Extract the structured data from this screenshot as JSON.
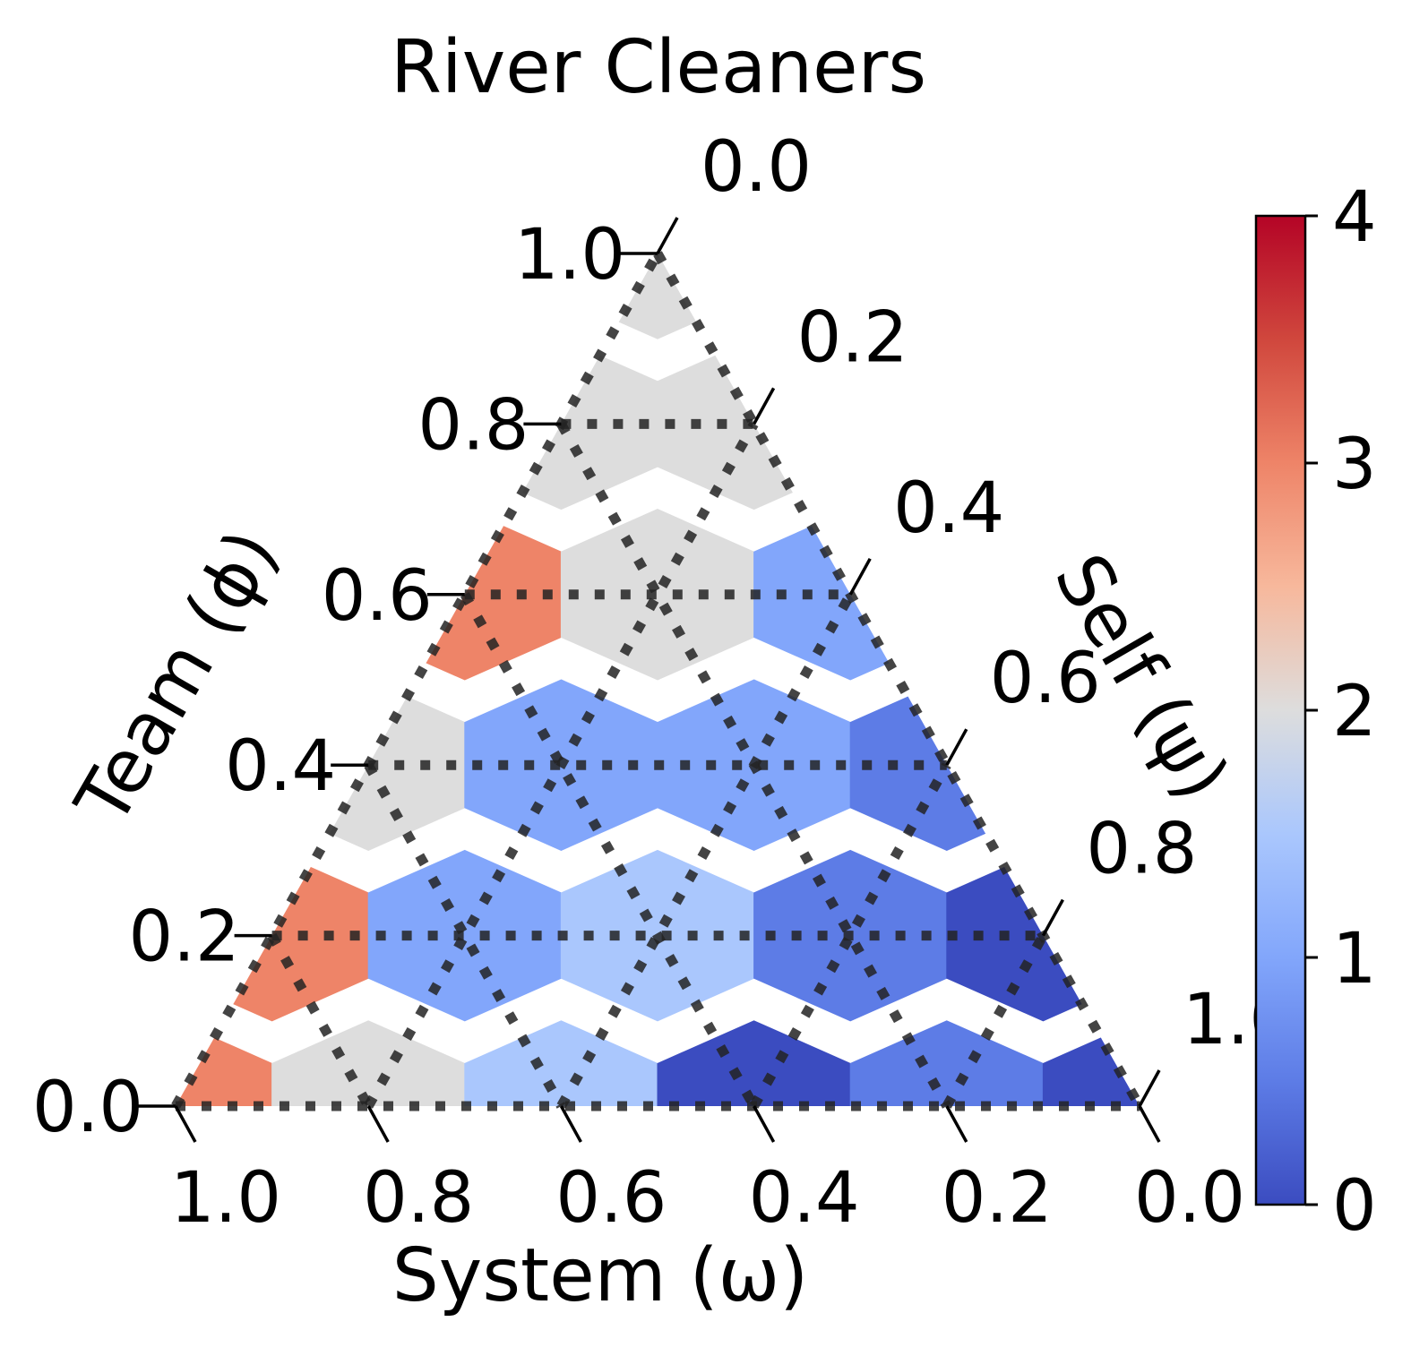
{
  "chart_data": {
    "type": "heatmap",
    "subtype": "ternary-hexbin",
    "title": "River Cleaners",
    "axes": {
      "bottom": {
        "label": "System (ω)",
        "ticks": [
          "1.0",
          "0.8",
          "0.6",
          "0.4",
          "0.2",
          "0.0"
        ]
      },
      "left": {
        "label": "Team (ϕ)",
        "ticks": [
          "0.0",
          "0.2",
          "0.4",
          "0.6",
          "0.8",
          "1.0"
        ]
      },
      "right": {
        "label": "Self (ψ)",
        "ticks": [
          "0.0",
          "0.2",
          "0.4",
          "0.6",
          "0.8",
          "1.0"
        ]
      }
    },
    "grid": true,
    "colorbar": {
      "min": 0,
      "max": 4,
      "ticks": [
        "0",
        "1",
        "2",
        "3",
        "4"
      ],
      "colormap": "coolwarm"
    },
    "cells": [
      {
        "team": 1.0,
        "self": 0.0,
        "value": 2.0
      },
      {
        "team": 0.8,
        "self": 0.0,
        "value": 2.0
      },
      {
        "team": 0.8,
        "self": 0.2,
        "value": 2.0
      },
      {
        "team": 0.6,
        "self": 0.0,
        "value": 3.0
      },
      {
        "team": 0.6,
        "self": 0.2,
        "value": 2.0
      },
      {
        "team": 0.6,
        "self": 0.4,
        "value": 1.0
      },
      {
        "team": 0.4,
        "self": 0.0,
        "value": 2.0
      },
      {
        "team": 0.4,
        "self": 0.2,
        "value": 1.0
      },
      {
        "team": 0.4,
        "self": 0.4,
        "value": 1.0
      },
      {
        "team": 0.4,
        "self": 0.6,
        "value": 0.5
      },
      {
        "team": 0.2,
        "self": 0.0,
        "value": 3.0
      },
      {
        "team": 0.2,
        "self": 0.2,
        "value": 1.0
      },
      {
        "team": 0.2,
        "self": 0.4,
        "value": 1.5
      },
      {
        "team": 0.2,
        "self": 0.6,
        "value": 0.5
      },
      {
        "team": 0.2,
        "self": 0.8,
        "value": 0.0
      },
      {
        "team": 0.0,
        "self": 0.0,
        "value": 3.0
      },
      {
        "team": 0.0,
        "self": 0.2,
        "value": 2.0
      },
      {
        "team": 0.0,
        "self": 0.4,
        "value": 1.5
      },
      {
        "team": 0.0,
        "self": 0.6,
        "value": 0.0
      },
      {
        "team": 0.0,
        "self": 0.8,
        "value": 0.5
      },
      {
        "team": 0.0,
        "self": 1.0,
        "value": 0.0
      }
    ]
  }
}
